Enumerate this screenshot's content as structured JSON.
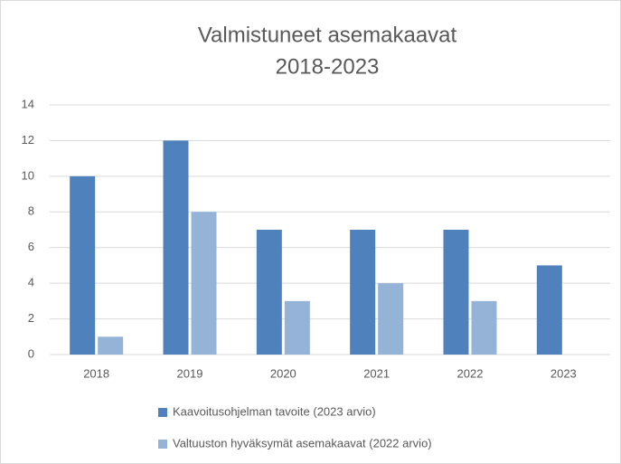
{
  "chart_data": {
    "type": "bar",
    "title": "Valmistuneet asemakaavat",
    "subtitle": "2018-2023",
    "categories": [
      "2018",
      "2019",
      "2020",
      "2021",
      "2022",
      "2023"
    ],
    "series": [
      {
        "name": "Kaavoitusohjelman tavoite (2023 arvio)",
        "color": "#4f81bd",
        "values": [
          10,
          12,
          7,
          7,
          7,
          5
        ]
      },
      {
        "name": "Valtuuston hyväksymät asemakaavat (2022 arvio)",
        "color": "#95b3d7",
        "values": [
          1,
          8,
          3,
          4,
          3,
          null
        ]
      }
    ],
    "ylim": [
      0,
      14
    ],
    "yticks": [
      0,
      2,
      4,
      6,
      8,
      10,
      12,
      14
    ],
    "grid": true,
    "legend": "bottom"
  }
}
